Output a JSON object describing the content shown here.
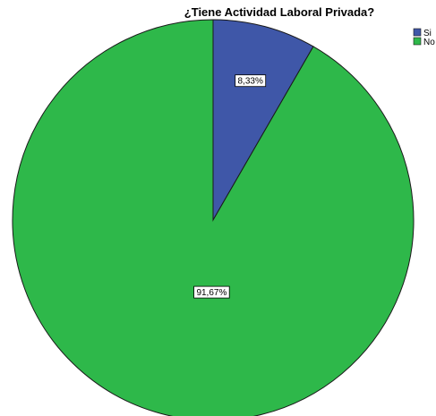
{
  "chart_data": {
    "type": "pie",
    "title": "¿Tiene Actividad Laboral Privada?",
    "slices": [
      {
        "name": "Si",
        "value": 8.33,
        "label": "8,33%",
        "color": "#3F57A8"
      },
      {
        "name": "No",
        "value": 91.67,
        "label": "91,67%",
        "color": "#2EB84A"
      }
    ],
    "start_angle_deg": 0,
    "direction": "clockwise",
    "legend_position": "top-right",
    "legend": [
      "Si",
      "No"
    ]
  }
}
